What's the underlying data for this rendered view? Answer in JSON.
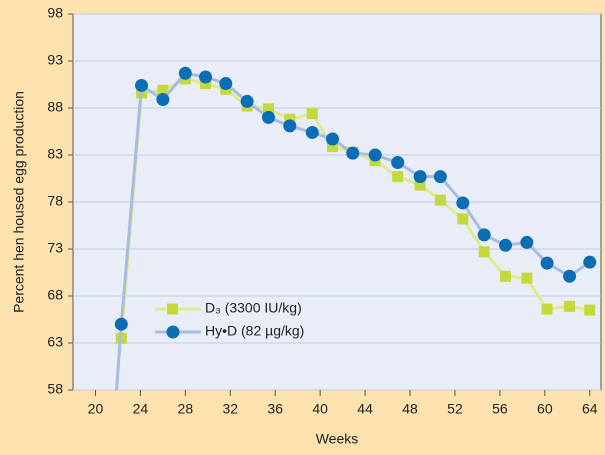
{
  "chart_data": {
    "type": "line",
    "x_label": "Weeks",
    "y_label": "Percent hen housed egg production",
    "xlim": [
      18,
      65
    ],
    "xticks": [
      20,
      24,
      28,
      32,
      36,
      40,
      44,
      48,
      52,
      56,
      60,
      64
    ],
    "ylim": [
      58,
      98
    ],
    "yticks": [
      58,
      63,
      68,
      73,
      78,
      83,
      88,
      93,
      98
    ],
    "grid": true,
    "legend": "lower left",
    "series": [
      {
        "name": "D₃ (3300 IU/kg)",
        "color": "#c3d83a",
        "line_color": "#dfe98f",
        "marker": "square",
        "x": [
          22.3,
          24.1,
          26.0,
          28.0,
          29.8,
          31.6,
          33.5,
          35.4,
          37.3,
          39.3,
          41.1,
          42.9,
          44.9,
          46.9,
          48.9,
          50.7,
          52.7,
          54.6,
          56.5,
          58.4,
          60.2,
          62.2,
          64.0
        ],
        "values": [
          63.5,
          89.6,
          89.9,
          91.1,
          90.6,
          90.0,
          88.2,
          87.9,
          86.8,
          87.4,
          83.9,
          83.3,
          82.4,
          80.7,
          79.8,
          78.2,
          76.2,
          72.7,
          70.1,
          69.9,
          66.6,
          66.9,
          66.5
        ]
      },
      {
        "name": "Hy•D (82 µg/kg)",
        "color": "#0b6db3",
        "line_color": "#a8bbe0",
        "marker": "circle",
        "x": [
          21.7,
          22.3,
          24.1,
          26.0,
          28.0,
          29.8,
          31.6,
          33.5,
          35.4,
          37.3,
          39.3,
          41.1,
          42.9,
          44.9,
          46.9,
          48.9,
          50.7,
          52.7,
          54.6,
          56.5,
          58.4,
          60.2,
          62.2,
          64.0
        ],
        "values": [
          55,
          65.0,
          90.4,
          88.9,
          91.7,
          91.3,
          90.6,
          88.7,
          87.0,
          86.1,
          85.4,
          84.7,
          83.2,
          83.0,
          82.2,
          80.7,
          80.7,
          77.9,
          74.5,
          73.4,
          73.7,
          71.5,
          70.1,
          71.6
        ]
      }
    ]
  }
}
